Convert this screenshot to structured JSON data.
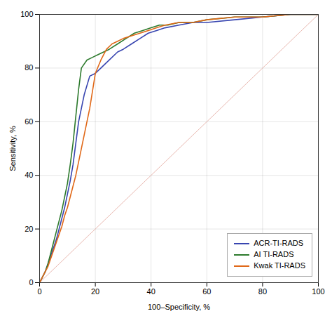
{
  "chart_data": {
    "type": "line",
    "xlabel": "100–Specificity, %",
    "ylabel": "Sensitivity, %",
    "xlim": [
      0,
      100
    ],
    "ylim": [
      0,
      100
    ],
    "xticks": [
      0,
      20,
      40,
      60,
      80,
      100
    ],
    "yticks": [
      0,
      20,
      40,
      60,
      80,
      100
    ],
    "grid": true,
    "legend": "lower right",
    "diagonal": {
      "x": [
        0,
        100
      ],
      "values": [
        0,
        100
      ],
      "color": "#e8b8b0"
    },
    "series": [
      {
        "name": "ACR-TI-RADS",
        "color": "#3845b0",
        "x": [
          0,
          1,
          2,
          3,
          4,
          5,
          6,
          7,
          8,
          9,
          10,
          11,
          12,
          13,
          14,
          16,
          18,
          20,
          22,
          25,
          28,
          30,
          33,
          36,
          39,
          42,
          45,
          50,
          55,
          60,
          70,
          80,
          90,
          100
        ],
        "values": [
          0,
          2,
          4,
          7,
          10,
          13,
          16,
          20,
          24,
          28,
          33,
          38,
          44,
          52,
          60,
          70,
          77,
          78,
          80,
          83,
          86,
          87,
          89,
          91,
          93,
          94,
          95,
          96,
          97,
          97,
          98,
          99,
          100,
          100
        ]
      },
      {
        "name": "AI TI-RADS",
        "color": "#2d7a2d",
        "x": [
          0,
          1,
          2,
          3,
          4,
          5,
          6,
          7,
          8,
          9,
          10,
          11,
          12,
          13,
          14,
          15,
          17,
          19,
          21,
          25,
          28,
          31,
          34,
          37,
          40,
          43,
          46,
          50,
          55,
          60,
          70,
          80,
          90,
          100
        ],
        "values": [
          0,
          2,
          4,
          7,
          11,
          15,
          19,
          23,
          27,
          32,
          37,
          44,
          52,
          62,
          72,
          80,
          83,
          84,
          85,
          87,
          89,
          91,
          93,
          94,
          95,
          96,
          96,
          97,
          97,
          98,
          99,
          99,
          100,
          100
        ]
      },
      {
        "name": "Kwak TI-RADS",
        "color": "#e06818",
        "x": [
          0,
          1,
          2,
          3,
          4,
          5,
          6,
          7,
          8,
          9,
          10,
          11,
          12,
          13,
          14,
          16,
          18,
          20,
          22,
          24,
          26,
          28,
          30,
          33,
          36,
          39,
          42,
          45,
          50,
          55,
          60,
          70,
          80,
          90,
          100
        ],
        "values": [
          0,
          2,
          4,
          6,
          9,
          12,
          15,
          18,
          21,
          25,
          28,
          32,
          36,
          40,
          45,
          55,
          65,
          78,
          83,
          87,
          89,
          90,
          91,
          92,
          93,
          94,
          95,
          96,
          97,
          97,
          98,
          99,
          99,
          100,
          100
        ]
      }
    ]
  }
}
